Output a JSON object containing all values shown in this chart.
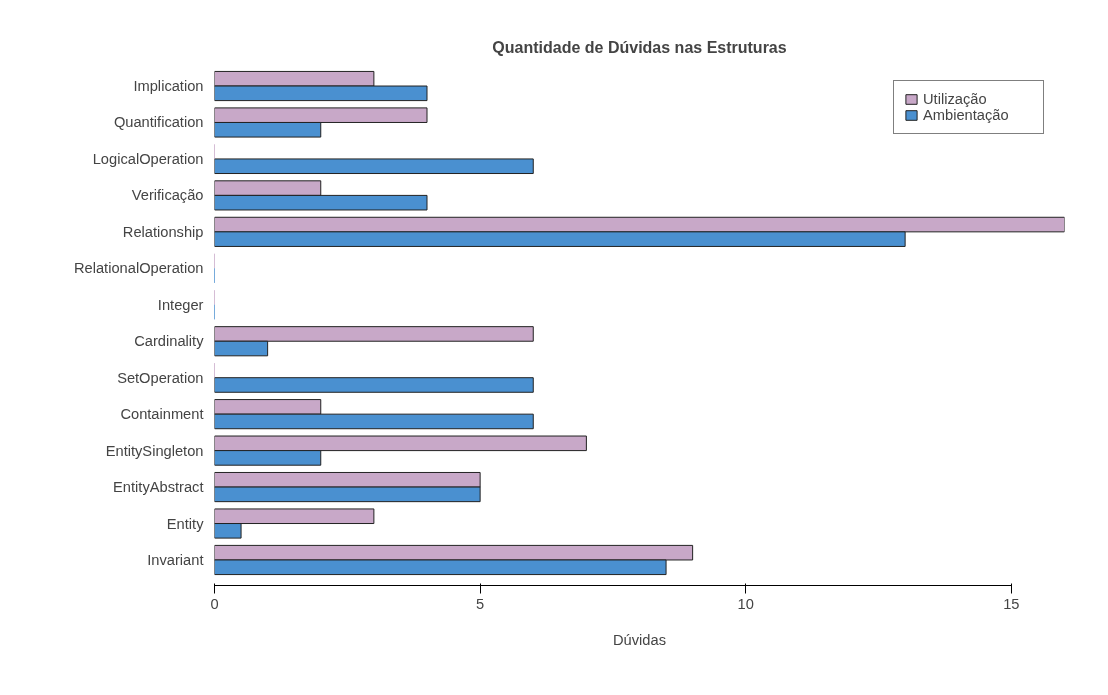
{
  "chart_data": {
    "type": "bar",
    "orientation": "horizontal",
    "title": "Quantidade de Dúvidas nas Estruturas",
    "xlabel": "Dúvidas",
    "categories": [
      "Implication",
      "Quantification",
      "LogicalOperation",
      "Verificação",
      "Relationship",
      "RelationalOperation",
      "Integer",
      "Cardinality",
      "SetOperation",
      "Containment",
      "EntitySingleton",
      "EntityAbstract",
      "Entity",
      "Invariant"
    ],
    "series": [
      {
        "name": "Utilização",
        "color": "#c8a8c8",
        "values": [
          3,
          4,
          0,
          2,
          16,
          0,
          0,
          6,
          0,
          2,
          7,
          5,
          3,
          9
        ]
      },
      {
        "name": "Ambientação",
        "color": "#4a90d0",
        "values": [
          4,
          2,
          6,
          4,
          13,
          0,
          0,
          1,
          6,
          6,
          2,
          5,
          0.5,
          8.5
        ]
      }
    ],
    "xlim": [
      0,
      16
    ],
    "xticks": [
      0,
      5,
      10,
      15
    ],
    "grid": false,
    "legend": "top right"
  }
}
